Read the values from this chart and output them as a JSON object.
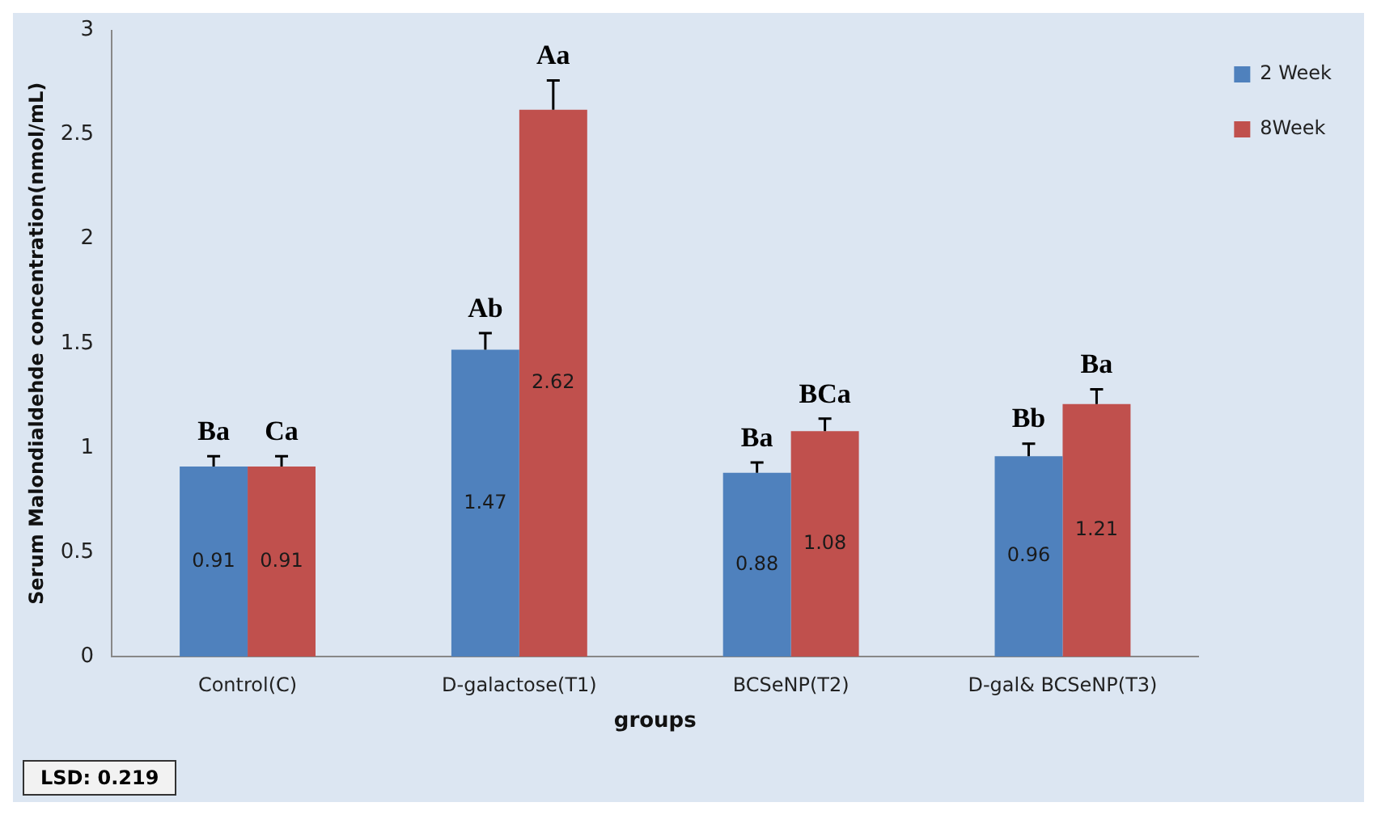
{
  "chart_data": {
    "type": "bar",
    "xlabel": "groups",
    "ylabel": "Serum Malondialdehde concentration(nmol/mL)",
    "categories": [
      "Control(C)",
      "D-galactose(T1)",
      "BCSeNP(T2)",
      "D-gal& BCSeNP(T3)"
    ],
    "series": [
      {
        "name": "2 Week",
        "color": "#4f81bd",
        "values": [
          0.91,
          1.47,
          0.88,
          0.96
        ],
        "errors": [
          [
            0.91,
            0.96
          ],
          [
            1.47,
            1.55
          ],
          [
            0.88,
            0.93
          ],
          [
            0.96,
            1.02
          ]
        ]
      },
      {
        "name": "8Week",
        "color": "#c0504d",
        "values": [
          0.91,
          2.62,
          1.08,
          1.21
        ],
        "errors": [
          [
            0.91,
            0.96
          ],
          [
            2.62,
            2.76
          ],
          [
            1.08,
            1.14
          ],
          [
            1.21,
            1.28
          ]
        ]
      }
    ],
    "ylim": [
      0,
      3
    ],
    "yticks": [
      0,
      0.5,
      1,
      1.5,
      2,
      2.5,
      3
    ],
    "grid": false,
    "legend": "top right",
    "data_labels": true,
    "annotations": [
      {
        "text": "Ba",
        "x": "Control(C)",
        "y": 0.91
      },
      {
        "text": "Ca",
        "x": "Control(C)",
        "y": 0.91
      },
      {
        "text": "Ab",
        "x": "D-galactose(T1)",
        "y": 1.47
      },
      {
        "text": "Aa",
        "x": "D-galactose(T1)",
        "y": 2.62
      },
      {
        "text": "Ba",
        "x": "BCSeNP(T2)",
        "y": 0.88
      },
      {
        "text": "BCa",
        "x": "BCSeNP(T2)",
        "y": 1.08
      },
      {
        "text": "Bb",
        "x": "D-gal& BCSeNP(T3)",
        "y": 0.96
      },
      {
        "text": "Ba",
        "x": "D-gal& BCSeNP(T3)",
        "y": 1.21
      },
      "LSD: 0.219"
    ]
  }
}
